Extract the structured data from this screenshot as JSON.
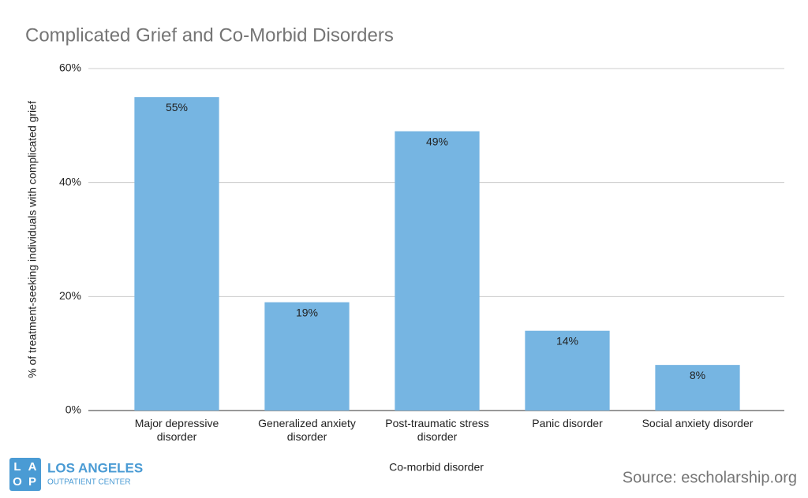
{
  "chart_data": {
    "type": "bar",
    "title": "Complicated Grief and Co-Morbid Disorders",
    "x_label": "Co-morbid disorder",
    "y_label": "% of treatment-seeking individuals with complicated grief",
    "categories": [
      "Major depressive disorder",
      "Generalized anxiety disorder",
      "Post-traumatic stress disorder",
      "Panic disorder",
      "Social anxiety disorder"
    ],
    "values": [
      55,
      19,
      49,
      14,
      8
    ],
    "value_labels": [
      "55%",
      "19%",
      "49%",
      "14%",
      "8%"
    ],
    "color": "#76b5e2",
    "ylim": [
      0,
      60
    ],
    "yticks": [
      {
        "value": 0,
        "label": "0%"
      },
      {
        "value": 20,
        "label": "20%"
      },
      {
        "value": 40,
        "label": "40%"
      },
      {
        "value": 60,
        "label": "60%"
      }
    ],
    "grid": true
  },
  "logo": {
    "letters": [
      "L",
      "A",
      "O",
      "P"
    ],
    "name": "LOS ANGELES",
    "subtitle": "OUTPATIENT CENTER"
  },
  "source": "Source: escholarship.org"
}
